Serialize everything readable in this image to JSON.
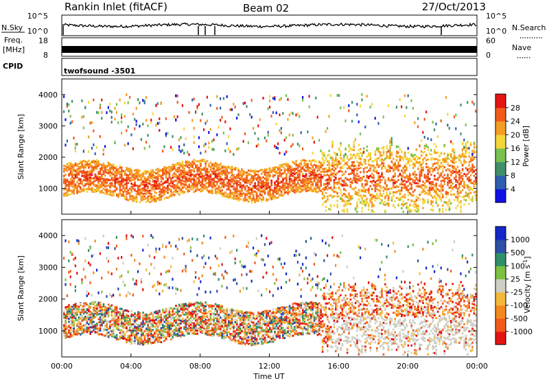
{
  "header": {
    "station": "Rankin Inlet (fitACF)",
    "beam": "Beam 02",
    "date": "27/Oct/2013"
  },
  "noise_panel": {
    "left_label": "N.Sky",
    "right_label": "N.Search",
    "left_ticks": [
      "10^5",
      "10^0"
    ],
    "right_ticks": [
      "10^5",
      "10^0"
    ]
  },
  "freq_panel": {
    "left_label": "Freq.",
    "left_unit": "[MHz]",
    "right_label": "Nave",
    "left_ticks": [
      "18",
      "8"
    ],
    "right_ticks": [
      "60",
      "0"
    ]
  },
  "cpid_panel": {
    "label": "CPID",
    "program": "twofsound -3501"
  },
  "chart_data": [
    {
      "type": "heatmap",
      "parameter": "Power",
      "ylabel": "Slant Range [km]",
      "yticks": [
        1000,
        2000,
        3000,
        4000
      ],
      "colorbar_label": "Power [dB]",
      "colorbar_ticks": [
        "4",
        "8",
        "12",
        "16",
        "20",
        "24",
        "28"
      ],
      "colorbar_colors": [
        "#1111e6",
        "#2e5fae",
        "#3f8f6a",
        "#79c04f",
        "#f4d63c",
        "#f59c25",
        "#f25a1c",
        "#e41414"
      ]
    },
    {
      "type": "heatmap",
      "parameter": "Velocity",
      "ylabel": "Slant Range [km]",
      "yticks": [
        1000,
        2000,
        3000,
        4000
      ],
      "colorbar_label": "Velocity [m s^-1]",
      "colorbar_ticks": [
        "-1000",
        "-500",
        "-100",
        "-25",
        "25",
        "100",
        "500",
        "1000"
      ],
      "colorbar_colors": [
        "#e41414",
        "#f25a1c",
        "#f5891f",
        "#f5b83a",
        "#cfcfc6",
        "#7cc141",
        "#2f8f6a",
        "#2d4fa6",
        "#1328c8"
      ]
    }
  ],
  "time_axis": {
    "ticks": [
      "00:00",
      "04:00",
      "08:00",
      "12:00",
      "16:00",
      "20:00",
      "00:00"
    ],
    "label": "Time UT"
  }
}
